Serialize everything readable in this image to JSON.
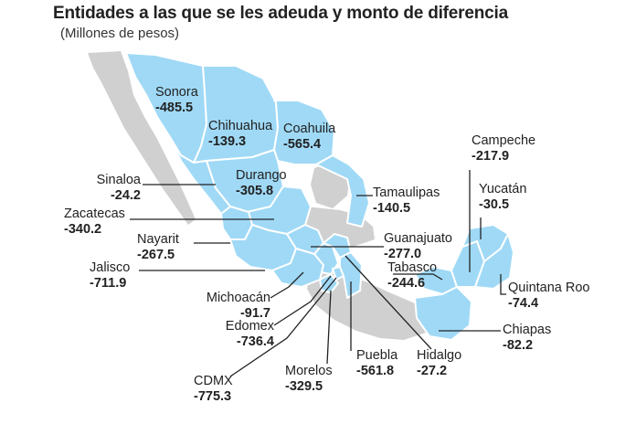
{
  "title": "Entidades a las que se les adeuda y monto de diferencia",
  "subtitle": "(Millones de pesos)",
  "colors": {
    "state_fill": "#9fd9f6",
    "state_border": "#ffffff",
    "base_map": "#d0d0d0",
    "leader": "#222222"
  },
  "states": [
    {
      "name": "Sonora",
      "value": "-485.5"
    },
    {
      "name": "Chihuahua",
      "value": "-139.3"
    },
    {
      "name": "Coahuila",
      "value": "-565.4"
    },
    {
      "name": "Durango",
      "value": "-305.8"
    },
    {
      "name": "Sinaloa",
      "value": "-24.2"
    },
    {
      "name": "Zacatecas",
      "value": "-340.2"
    },
    {
      "name": "Nayarit",
      "value": "-267.5"
    },
    {
      "name": "Jalisco",
      "value": "-711.9"
    },
    {
      "name": "Michoacán",
      "value": "-91.7"
    },
    {
      "name": "Edomex",
      "value": "-736.4"
    },
    {
      "name": "CDMX",
      "value": "-775.3"
    },
    {
      "name": "Morelos",
      "value": "-329.5"
    },
    {
      "name": "Puebla",
      "value": "-561.8"
    },
    {
      "name": "Hidalgo",
      "value": "-27.2"
    },
    {
      "name": "Tamaulipas",
      "value": "-140.5"
    },
    {
      "name": "Guanajuato",
      "value": "-277.0"
    },
    {
      "name": "Tabasco",
      "value": "-244.6"
    },
    {
      "name": "Campeche",
      "value": "-217.9"
    },
    {
      "name": "Yucatán",
      "value": "-30.5"
    },
    {
      "name": "Quintana Roo",
      "value": "-74.4"
    },
    {
      "name": "Chiapas",
      "value": "-82.2"
    }
  ]
}
